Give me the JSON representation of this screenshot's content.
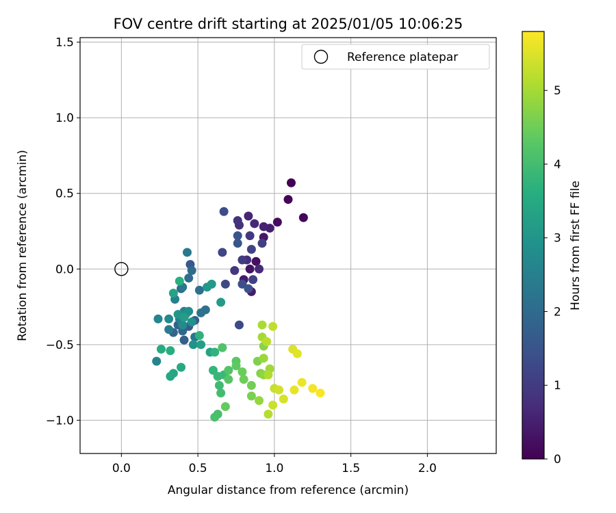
{
  "chart_data": {
    "type": "scatter",
    "title": "FOV centre drift starting at 2025/01/05 10:06:25",
    "xlabel": "Angular distance from reference (arcmin)",
    "ylabel": "Rotation from reference (arcmin)",
    "xlim": [
      -0.27,
      2.45
    ],
    "ylim": [
      -1.22,
      1.53
    ],
    "xticks": [
      0.0,
      0.5,
      1.0,
      1.5,
      2.0
    ],
    "xtick_labels": [
      "0.0",
      "0.5",
      "1.0",
      "1.5",
      "2.0"
    ],
    "yticks": [
      -1.0,
      -0.5,
      0.0,
      0.5,
      1.0,
      1.5
    ],
    "ytick_labels": [
      "−1.0",
      "−0.5",
      "0.0",
      "0.5",
      "1.0",
      "1.5"
    ],
    "grid": true,
    "legend": {
      "position": "top-right",
      "entries": [
        "Reference platepar"
      ]
    },
    "reference_point": {
      "x": 0.0,
      "y": 0.0
    },
    "colorbar": {
      "label": "Hours from first FF file",
      "colormap": "viridis",
      "range": [
        0,
        5.8
      ],
      "ticks": [
        0,
        1,
        2,
        3,
        4,
        5
      ],
      "tick_labels": [
        "0",
        "1",
        "2",
        "3",
        "4",
        "5"
      ]
    },
    "series": [
      {
        "values": [
          [
            1.11,
            0.57,
            0.0
          ],
          [
            1.09,
            0.46,
            0.05
          ],
          [
            1.19,
            0.34,
            0.1
          ],
          [
            1.02,
            0.31,
            0.2
          ],
          [
            0.88,
            0.05,
            0.25
          ],
          [
            0.84,
            0.0,
            0.3
          ],
          [
            0.93,
            0.21,
            0.35
          ],
          [
            0.8,
            -0.07,
            0.4
          ],
          [
            0.85,
            -0.15,
            0.45
          ],
          [
            0.97,
            0.27,
            0.5
          ],
          [
            0.93,
            0.28,
            0.55
          ],
          [
            0.83,
            0.35,
            0.6
          ],
          [
            0.87,
            0.3,
            0.65
          ],
          [
            0.9,
            0.0,
            0.7
          ],
          [
            0.82,
            0.06,
            0.75
          ],
          [
            0.77,
            0.29,
            0.8
          ],
          [
            0.76,
            0.32,
            0.85
          ],
          [
            0.74,
            -0.01,
            0.9
          ],
          [
            0.84,
            0.22,
            0.95
          ],
          [
            0.79,
            0.06,
            1.0
          ],
          [
            0.92,
            0.17,
            1.05
          ],
          [
            0.86,
            -0.07,
            1.1
          ],
          [
            0.85,
            0.13,
            1.15
          ],
          [
            0.66,
            0.11,
            1.2
          ],
          [
            0.68,
            -0.1,
            1.25
          ],
          [
            0.77,
            -0.37,
            1.3
          ],
          [
            0.67,
            0.38,
            1.35
          ],
          [
            0.79,
            -0.1,
            1.4
          ],
          [
            0.83,
            -0.13,
            1.45
          ],
          [
            0.76,
            0.22,
            1.5
          ],
          [
            0.76,
            0.17,
            1.55
          ],
          [
            0.45,
            0.03,
            1.6
          ],
          [
            0.44,
            -0.38,
            1.65
          ],
          [
            0.48,
            -0.34,
            1.7
          ],
          [
            0.41,
            -0.47,
            1.75
          ],
          [
            0.37,
            -0.37,
            1.8
          ],
          [
            0.34,
            -0.42,
            1.85
          ],
          [
            0.4,
            -0.41,
            1.9
          ],
          [
            0.39,
            -0.13,
            1.95
          ],
          [
            0.46,
            -0.01,
            2.0
          ],
          [
            0.44,
            -0.06,
            2.05
          ],
          [
            0.51,
            -0.14,
            2.1
          ],
          [
            0.55,
            -0.27,
            2.15
          ],
          [
            0.52,
            -0.29,
            2.2
          ],
          [
            0.48,
            -0.45,
            2.25
          ],
          [
            0.4,
            -0.12,
            2.3
          ],
          [
            0.43,
            0.11,
            2.35
          ],
          [
            0.31,
            -0.4,
            2.4
          ],
          [
            0.38,
            -0.33,
            2.45
          ],
          [
            0.35,
            -0.2,
            2.5
          ],
          [
            0.41,
            -0.28,
            2.55
          ],
          [
            0.23,
            -0.61,
            2.6
          ],
          [
            0.24,
            -0.33,
            2.65
          ],
          [
            0.31,
            -0.33,
            2.7
          ],
          [
            0.4,
            -0.37,
            2.75
          ],
          [
            0.42,
            -0.3,
            2.8
          ],
          [
            0.44,
            -0.28,
            2.85
          ],
          [
            0.46,
            -0.35,
            2.9
          ],
          [
            0.47,
            -0.5,
            2.95
          ],
          [
            0.37,
            -0.3,
            3.0
          ],
          [
            0.56,
            -0.12,
            3.05
          ],
          [
            0.59,
            -0.1,
            3.1
          ],
          [
            0.65,
            -0.22,
            3.15
          ],
          [
            0.41,
            -0.32,
            3.2
          ],
          [
            0.52,
            -0.5,
            3.25
          ],
          [
            0.58,
            -0.55,
            3.3
          ],
          [
            0.34,
            -0.16,
            3.35
          ],
          [
            0.34,
            -0.69,
            3.4
          ],
          [
            0.32,
            -0.71,
            3.45
          ],
          [
            0.39,
            -0.65,
            3.5
          ],
          [
            0.26,
            -0.53,
            3.55
          ],
          [
            0.32,
            -0.54,
            3.6
          ],
          [
            0.38,
            -0.08,
            3.65
          ],
          [
            0.51,
            -0.44,
            3.7
          ],
          [
            0.61,
            -0.55,
            3.75
          ],
          [
            0.6,
            -0.67,
            3.8
          ],
          [
            0.63,
            -0.71,
            3.85
          ],
          [
            0.67,
            -0.7,
            3.9
          ],
          [
            0.64,
            -0.77,
            3.95
          ],
          [
            0.65,
            -0.82,
            4.0
          ],
          [
            0.63,
            -0.96,
            4.05
          ],
          [
            0.61,
            -0.98,
            4.1
          ],
          [
            0.66,
            -0.52,
            4.15
          ],
          [
            0.7,
            -0.67,
            4.2
          ],
          [
            0.7,
            -0.73,
            4.25
          ],
          [
            0.75,
            -0.61,
            4.3
          ],
          [
            0.75,
            -0.64,
            4.35
          ],
          [
            0.68,
            -0.91,
            4.4
          ],
          [
            0.79,
            -0.68,
            4.45
          ],
          [
            0.8,
            -0.73,
            4.5
          ],
          [
            0.85,
            -0.77,
            4.55
          ],
          [
            0.85,
            -0.84,
            4.6
          ],
          [
            0.89,
            -0.61,
            4.65
          ],
          [
            0.91,
            -0.69,
            4.7
          ],
          [
            0.93,
            -0.51,
            4.75
          ],
          [
            0.93,
            -0.7,
            4.8
          ],
          [
            0.9,
            -0.87,
            4.85
          ],
          [
            0.93,
            -0.59,
            4.9
          ],
          [
            0.97,
            -0.66,
            4.95
          ],
          [
            0.92,
            -0.45,
            5.0
          ],
          [
            0.92,
            -0.37,
            5.05
          ],
          [
            0.96,
            -0.7,
            5.1
          ],
          [
            0.96,
            -0.96,
            5.15
          ],
          [
            0.95,
            -0.48,
            5.2
          ],
          [
            0.99,
            -0.38,
            5.25
          ],
          [
            1.0,
            -0.79,
            5.3
          ],
          [
            0.99,
            -0.9,
            5.35
          ],
          [
            1.03,
            -0.8,
            5.4
          ],
          [
            1.06,
            -0.86,
            5.45
          ],
          [
            1.12,
            -0.53,
            5.5
          ],
          [
            1.15,
            -0.56,
            5.55
          ],
          [
            1.13,
            -0.8,
            5.6
          ],
          [
            1.18,
            -0.75,
            5.65
          ],
          [
            1.25,
            -0.79,
            5.7
          ],
          [
            1.3,
            -0.82,
            5.75
          ]
        ]
      }
    ]
  }
}
